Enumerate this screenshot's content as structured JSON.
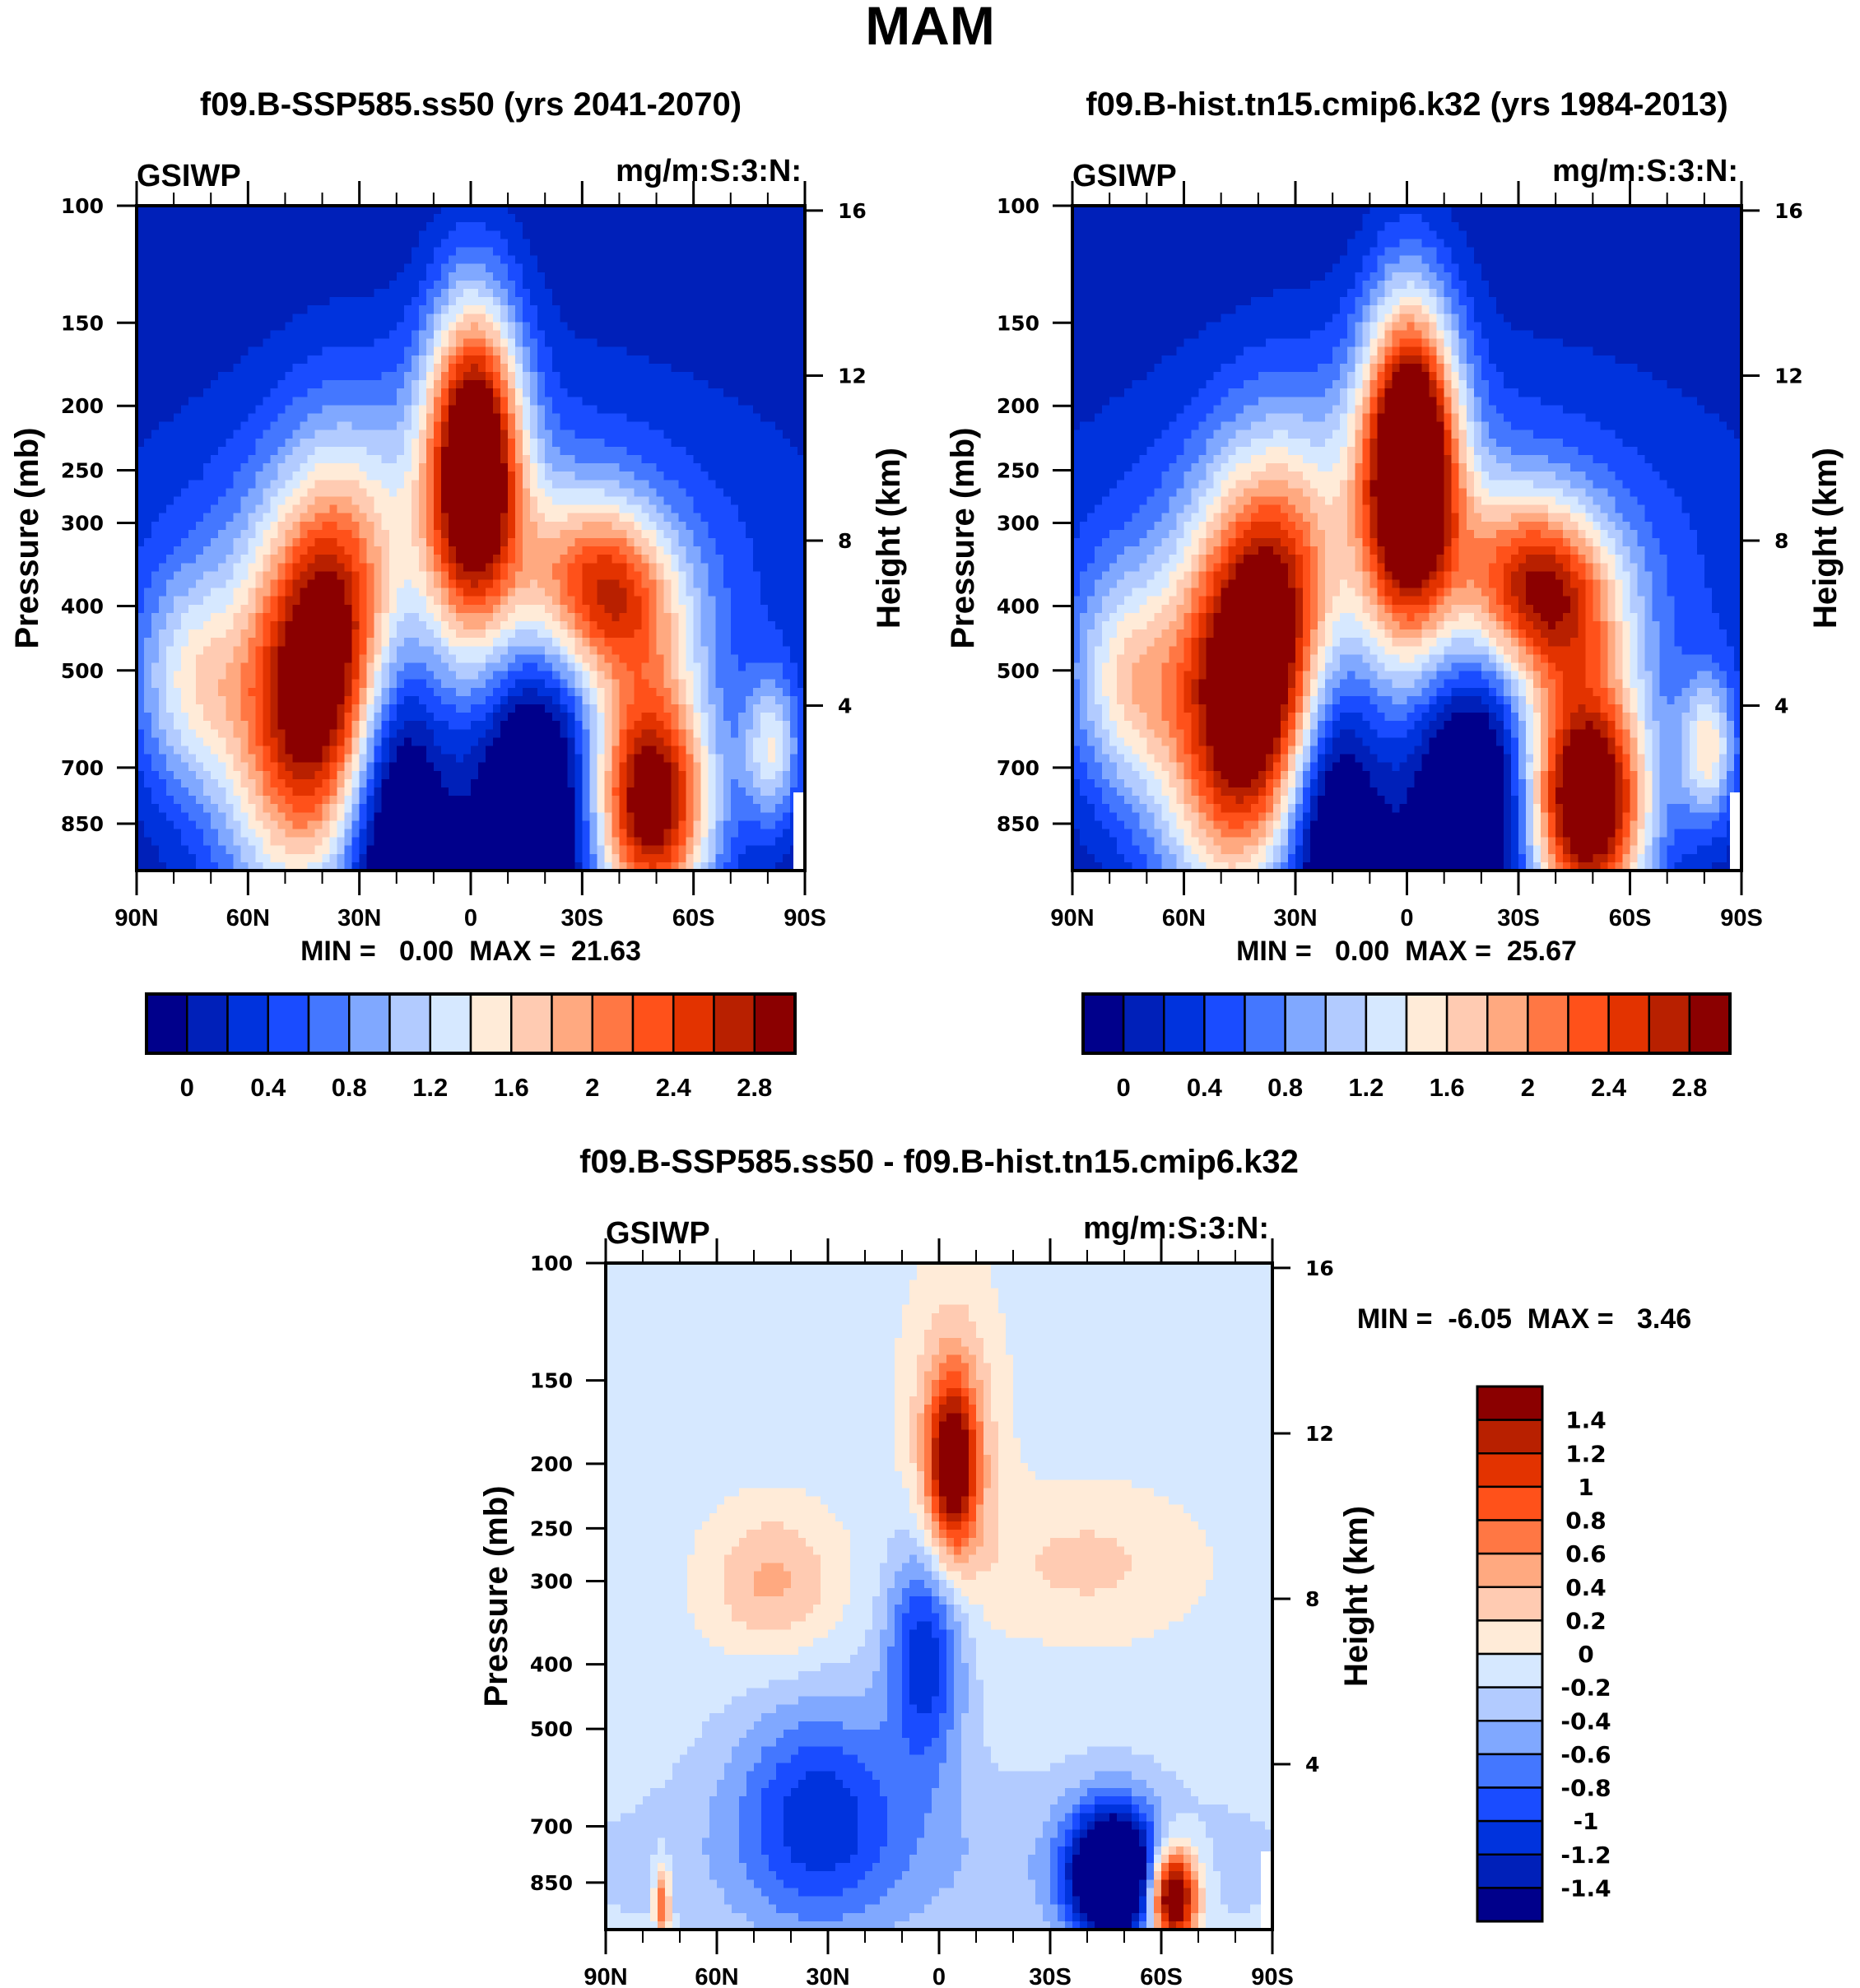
{
  "figure": {
    "title": "MAM"
  },
  "palette": [
    "#00008b",
    "#0020b9",
    "#0033dd",
    "#1a4cff",
    "#4477ff",
    "#80a8ff",
    "#b2cbff",
    "#d6e8ff",
    "#ffebd8",
    "#ffcbb2",
    "#ffa980",
    "#ff7744",
    "#ff511a",
    "#e33300",
    "#b82000",
    "#8b0000"
  ],
  "chart_data": [
    {
      "type": "heatmap",
      "panel": "top-left",
      "title": "f09.B-SSP585.ss50 (yrs 2041-2070)",
      "left_label": "GSIWP",
      "right_label": "mg/m:S:3:N:",
      "xlabel": "",
      "ylabel": "Pressure (mb)",
      "ylabel_right": "Height (km)",
      "x_ticks": [
        "90N",
        "60N",
        "30N",
        "0",
        "30S",
        "60S",
        "90S"
      ],
      "x_range": [
        90,
        -90
      ],
      "y_ticks": [
        "100",
        "150",
        "200",
        "250",
        "300",
        "400",
        "500",
        "700",
        "850"
      ],
      "y_range_mb": [
        100,
        1000
      ],
      "y_right_ticks": [
        "16",
        "12",
        "8",
        "4"
      ],
      "minmax_text": "MIN =   0.00  MAX =  21.63",
      "min": 0.0,
      "max": 21.63,
      "colorbar": {
        "orientation": "horizontal",
        "levels": [
          0,
          0.2,
          0.4,
          0.6,
          0.8,
          1.0,
          1.2,
          1.4,
          1.6,
          1.8,
          2.0,
          2.2,
          2.4,
          2.6,
          2.8
        ],
        "labels": [
          "0",
          "0.4",
          "0.8",
          "1.2",
          "1.6",
          "2",
          "2.4",
          "2.8"
        ]
      },
      "features": [
        {
          "name": "NH midlatitude max",
          "lat": 45,
          "p_mb": [
            300,
            1000
          ],
          "level": "high"
        },
        {
          "name": "Tropical upper max",
          "lat": -2,
          "p_mb": [
            170,
            520
          ],
          "level": "high"
        },
        {
          "name": "SH midlatitude max",
          "lat": -55,
          "p_mb": [
            550,
            1000
          ],
          "level": "high"
        }
      ]
    },
    {
      "type": "heatmap",
      "panel": "top-right",
      "title": "f09.B-hist.tn15.cmip6.k32 (yrs 1984-2013)",
      "left_label": "GSIWP",
      "right_label": "mg/m:S:3:N:",
      "xlabel": "",
      "ylabel": "Pressure (mb)",
      "ylabel_right": "Height (km)",
      "x_ticks": [
        "90N",
        "60N",
        "30N",
        "0",
        "30S",
        "60S",
        "90S"
      ],
      "x_range": [
        90,
        -90
      ],
      "y_ticks": [
        "100",
        "150",
        "200",
        "250",
        "300",
        "400",
        "500",
        "700",
        "850"
      ],
      "y_range_mb": [
        100,
        1000
      ],
      "y_right_ticks": [
        "16",
        "12",
        "8",
        "4"
      ],
      "minmax_text": "MIN =   0.00  MAX =  25.67",
      "min": 0.0,
      "max": 25.67,
      "colorbar": {
        "orientation": "horizontal",
        "levels": [
          0,
          0.2,
          0.4,
          0.6,
          0.8,
          1.0,
          1.2,
          1.4,
          1.6,
          1.8,
          2.0,
          2.2,
          2.4,
          2.6,
          2.8
        ],
        "labels": [
          "0",
          "0.4",
          "0.8",
          "1.2",
          "1.6",
          "2",
          "2.4",
          "2.8"
        ]
      }
    },
    {
      "type": "heatmap",
      "panel": "bottom",
      "title": "f09.B-SSP585.ss50 - f09.B-hist.tn15.cmip6.k32",
      "left_label": "GSIWP",
      "right_label": "mg/m:S:3:N:",
      "xlabel": "",
      "ylabel": "Pressure (mb)",
      "ylabel_right": "Height (km)",
      "x_ticks": [
        "90N",
        "60N",
        "30N",
        "0",
        "30S",
        "60S",
        "90S"
      ],
      "x_range": [
        90,
        -90
      ],
      "y_ticks": [
        "100",
        "150",
        "200",
        "250",
        "300",
        "400",
        "500",
        "700",
        "850"
      ],
      "y_range_mb": [
        100,
        1000
      ],
      "y_right_ticks": [
        "16",
        "12",
        "8",
        "4"
      ],
      "minmax_text": "MIN =  -6.05  MAX =   3.46",
      "min": -6.05,
      "max": 3.46,
      "colorbar": {
        "orientation": "vertical",
        "levels": [
          -1.4,
          -1.2,
          -1.0,
          -0.8,
          -0.6,
          -0.4,
          -0.2,
          0,
          0.2,
          0.4,
          0.6,
          0.8,
          1.0,
          1.2,
          1.4
        ],
        "labels": [
          "1.4",
          "1.2",
          "1",
          "0.8",
          "0.6",
          "0.4",
          "0.2",
          "0",
          "-0.2",
          "-0.4",
          "-0.6",
          "-0.8",
          "-1",
          "-1.2",
          "-1.4"
        ]
      }
    }
  ]
}
